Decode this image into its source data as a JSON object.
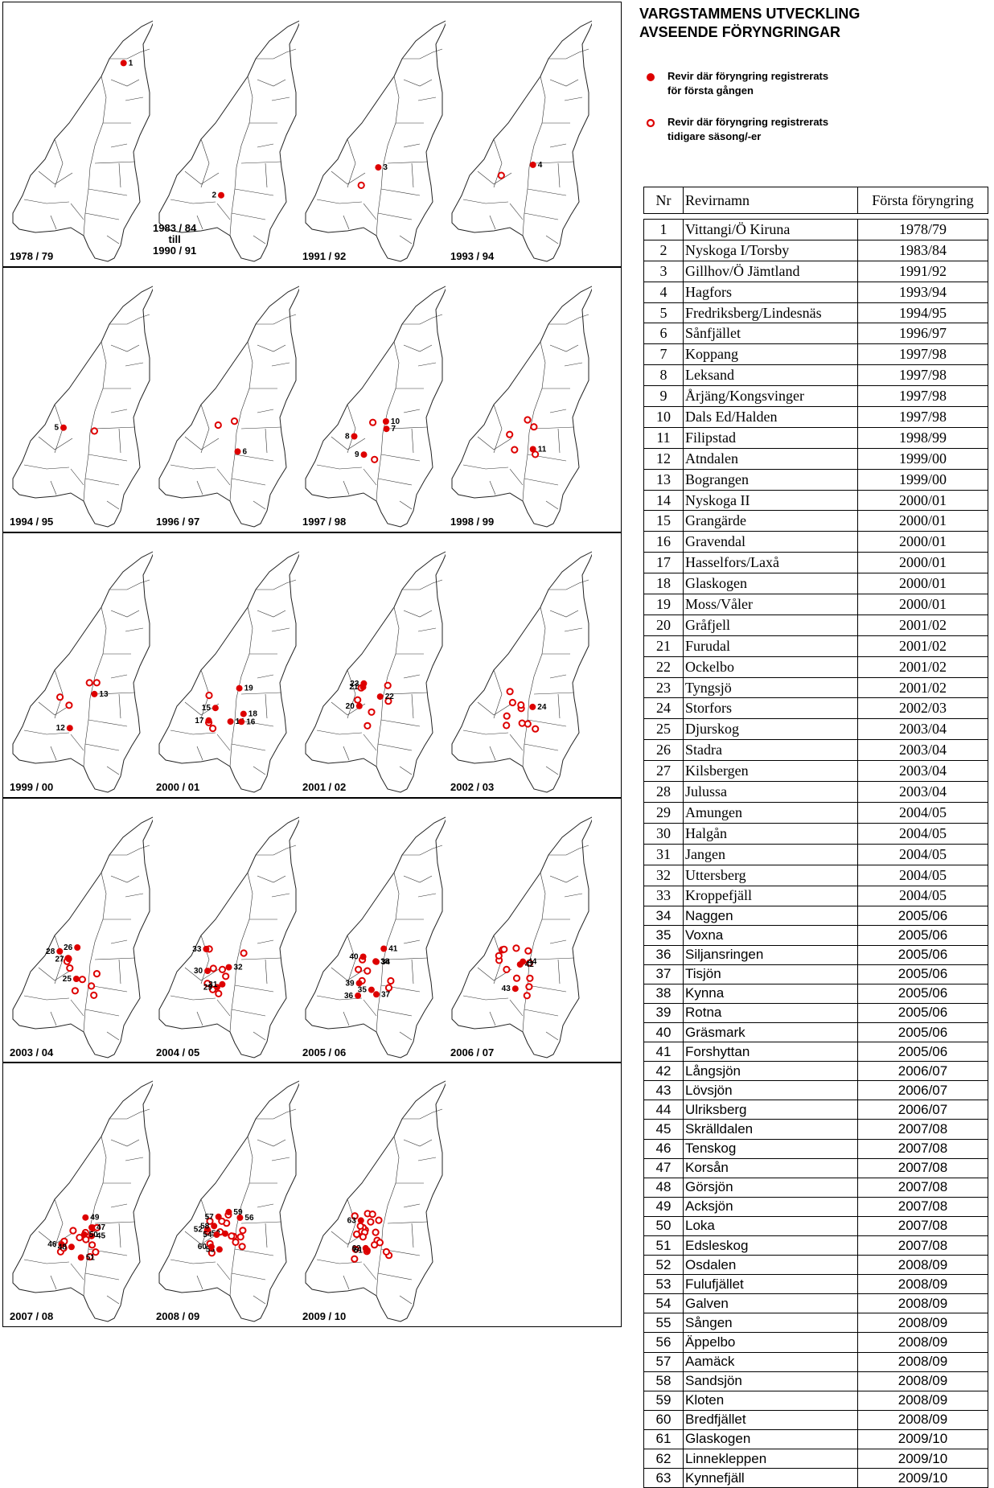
{
  "title": [
    "VARGSTAMMENS UTVECKLING",
    "AVSEENDE FÖRYNGRINGAR"
  ],
  "legend": {
    "first": "Revir där föryngring registrerats\nför första gången",
    "earlier": "Revir där föryngring registrerats\n tidigare säsong/-er",
    "first_color": "#dd0000",
    "earlier_color": "#dd0000"
  },
  "table": {
    "headers": [
      "Nr",
      "Revirnamn",
      "Första föryngring"
    ],
    "rows": [
      [
        "1",
        "Vittangi/Ö Kiruna",
        "1978/79"
      ],
      [
        "2",
        "Nyskoga I/Torsby",
        "1983/84"
      ],
      [
        "3",
        "Gillhov/Ö Jämtland",
        "1991/92"
      ],
      [
        "4",
        "Hagfors",
        "1993/94"
      ],
      [
        "5",
        "Fredriksberg/Lindesnäs",
        "1994/95"
      ],
      [
        "6",
        "Sånfjället",
        "1996/97"
      ],
      [
        "7",
        "Koppang",
        "1997/98"
      ],
      [
        "8",
        "Leksand",
        "1997/98"
      ],
      [
        "9",
        "Årjäng/Kongsvinger",
        "1997/98"
      ],
      [
        "10",
        "Dals Ed/Halden",
        "1997/98"
      ],
      [
        "11",
        "Filipstad",
        "1998/99"
      ],
      [
        "12",
        "Atndalen",
        "1999/00"
      ],
      [
        "13",
        "Bograngen",
        "1999/00"
      ],
      [
        "14",
        "Nyskoga II",
        "2000/01"
      ],
      [
        "15",
        "Grangärde",
        "2000/01"
      ],
      [
        "16",
        "Gravendal",
        "2000/01"
      ],
      [
        "17",
        "Hasselfors/Laxå",
        "2000/01"
      ],
      [
        "18",
        "Glaskogen",
        "2000/01"
      ],
      [
        "19",
        "Moss/Våler",
        "2000/01"
      ],
      [
        "20",
        "Gråfjell",
        "2001/02"
      ],
      [
        "21",
        "Furudal",
        "2001/02"
      ],
      [
        "22",
        "Ockelbo",
        "2001/02"
      ],
      [
        "23",
        "Tyngsjö",
        "2001/02"
      ],
      [
        "24",
        "Storfors",
        "2002/03"
      ],
      [
        "25",
        "Djurskog",
        "2003/04"
      ],
      [
        "26",
        "Stadra",
        "2003/04"
      ],
      [
        "27",
        "Kilsbergen",
        "2003/04"
      ],
      [
        "28",
        "Julussa",
        "2003/04"
      ],
      [
        "29",
        "Amungen",
        "2004/05"
      ],
      [
        "30",
        "Halgån",
        "2004/05"
      ],
      [
        "31",
        "Jangen",
        "2004/05"
      ],
      [
        "32",
        "Uttersberg",
        "2004/05"
      ],
      [
        "33",
        "Kroppefjäll",
        "2004/05"
      ],
      [
        "34",
        "Naggen",
        "2005/06"
      ],
      [
        "35",
        "Voxna",
        "2005/06"
      ],
      [
        "36",
        "Siljansringen",
        "2005/06"
      ],
      [
        "37",
        "Tisjön",
        "2005/06"
      ],
      [
        "38",
        "Kynna",
        "2005/06"
      ],
      [
        "39",
        "Rotna",
        "2005/06"
      ],
      [
        "40",
        "Gräsmark",
        "2005/06"
      ],
      [
        "41",
        "Forshyttan",
        "2005/06"
      ],
      [
        "42",
        "Långsjön",
        "2006/07"
      ],
      [
        "43",
        "Lövsjön",
        "2006/07"
      ],
      [
        "44",
        "Ulriksberg",
        "2006/07"
      ],
      [
        "45",
        "Skrälldalen",
        "2007/08"
      ],
      [
        "46",
        "Tenskog",
        "2007/08"
      ],
      [
        "47",
        "Korsån",
        "2007/08"
      ],
      [
        "48",
        "Görsjön",
        "2007/08"
      ],
      [
        "49",
        "Acksjön",
        "2007/08"
      ],
      [
        "50",
        "Loka",
        "2007/08"
      ],
      [
        "51",
        "Edsleskog",
        "2007/08"
      ],
      [
        "52",
        "Osdalen",
        "2008/09"
      ],
      [
        "53",
        "Fulufjället",
        "2008/09"
      ],
      [
        "54",
        "Galven",
        "2008/09"
      ],
      [
        "55",
        "Sången",
        "2008/09"
      ],
      [
        "56",
        "Äppelbo",
        "2008/09"
      ],
      [
        "57",
        "Aamäck",
        "2008/09"
      ],
      [
        "58",
        "Sandsjön",
        "2008/09"
      ],
      [
        "59",
        "Kloten",
        "2008/09"
      ],
      [
        "60",
        "Bredfjället",
        "2008/09"
      ],
      [
        "61",
        "Glaskogen",
        "2009/10"
      ],
      [
        "62",
        "Linnekleppen",
        "2009/10"
      ],
      [
        "63",
        "Kynnefjäll",
        "2009/10"
      ]
    ]
  },
  "maps": [
    {
      "season": "1978 / 79",
      "labels": [
        "1"
      ],
      "new": 1,
      "old": 0
    },
    {
      "season": "1983 / 84\ntill\n1990 / 91",
      "labels": [
        "2"
      ],
      "new": 1,
      "old": 0
    },
    {
      "season": "1991 / 92",
      "labels": [
        "3"
      ],
      "new": 1,
      "old": 1
    },
    {
      "season": "1993 / 94",
      "labels": [
        "4"
      ],
      "new": 1,
      "old": 1
    },
    {
      "season": "1994 / 95",
      "labels": [
        "5"
      ],
      "new": 1,
      "old": 1
    },
    {
      "season": "1996 / 97",
      "labels": [
        "6"
      ],
      "new": 1,
      "old": 2
    },
    {
      "season": "1997 / 98",
      "labels": [
        "7",
        "8",
        "9",
        "10"
      ],
      "new": 4,
      "old": 2
    },
    {
      "season": "1998 / 99",
      "labels": [
        "11"
      ],
      "new": 1,
      "old": 5
    },
    {
      "season": "1999 / 00",
      "labels": [
        "12",
        "13"
      ],
      "new": 2,
      "old": 4
    },
    {
      "season": "2000 / 01",
      "labels": [
        "14",
        "15",
        "16",
        "17",
        "18",
        "19"
      ],
      "new": 6,
      "old": 3
    },
    {
      "season": "2001 / 02",
      "labels": [
        "20",
        "21",
        "22",
        "23"
      ],
      "new": 4,
      "old": 6
    },
    {
      "season": "2002 / 03",
      "labels": [
        "24"
      ],
      "new": 1,
      "old": 9
    },
    {
      "season": "2003 / 04",
      "labels": [
        "25",
        "26",
        "27",
        "28"
      ],
      "new": 4,
      "old": 8
    },
    {
      "season": "2004 / 05",
      "labels": [
        "29",
        "30",
        "31",
        "32",
        "33"
      ],
      "new": 5,
      "old": 8
    },
    {
      "season": "2005 / 06",
      "labels": [
        "34",
        "35",
        "36",
        "37",
        "38",
        "39",
        "40",
        "41"
      ],
      "new": 8,
      "old": 6
    },
    {
      "season": "2006 / 07",
      "labels": [
        "42",
        "43",
        "44"
      ],
      "new": 3,
      "old": 12
    },
    {
      "season": "2007 / 08",
      "labels": [
        "45",
        "46",
        "47",
        "48",
        "49",
        "50",
        "51"
      ],
      "new": 7,
      "old": 12
    },
    {
      "season": "2008 / 09",
      "labels": [
        "52",
        "53",
        "54",
        "55",
        "56",
        "57",
        "58",
        "59",
        "60"
      ],
      "new": 9,
      "old": 14
    },
    {
      "season": "2009 / 10",
      "labels": [
        "61",
        "62",
        "63"
      ],
      "new": 3,
      "old": 22
    }
  ]
}
